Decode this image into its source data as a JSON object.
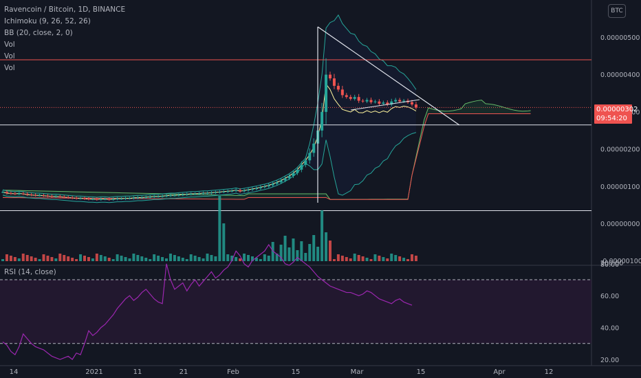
{
  "legend": {
    "title": "Ravencoin / Bitcoin, 1D, BINANCE",
    "indicators": [
      "Ichimoku (9, 26, 52, 26)",
      "BB (20, close, 2, 0)",
      "Vol",
      "Vol",
      "Vol"
    ]
  },
  "currency_button": "BTC",
  "price_tag": {
    "value": "0.00000302",
    "countdown": "09:54:20"
  },
  "rsi_legend": "RSI (14, close)",
  "colors": {
    "background": "#131722",
    "up": "#26a69a",
    "down": "#ef5350",
    "rsi": "#9c27b0",
    "rsi_band": "#2a1a35",
    "kumo": "#1c3a30",
    "horizontal_line": "#e0e3eb",
    "red_line": "#ef5350"
  },
  "chart_data": [
    {
      "type": "candlestick",
      "title": "Ravencoin / Bitcoin, 1D, BINANCE",
      "ylim": [
        -1e-06,
        5.6e-06
      ],
      "y_ticks": [
        "0.00000500",
        "0.00000400",
        "0.00000300",
        "0.00000200",
        "0.00000100",
        "0.00000000",
        "-0.00000100"
      ],
      "x_ticks": [
        "14",
        "2021",
        "11",
        "21",
        "Feb",
        "15",
        "Mar",
        "15",
        "Apr",
        "12"
      ],
      "current_price": 3.02e-06,
      "horizontal_lines": [
        4.3e-06,
        2.55e-06,
        2.5e-07
      ],
      "close_approx": [
        7.5e-07,
        7.2e-07,
        7.1e-07,
        7e-07,
        7.1e-07,
        7e-07,
        6.8e-07,
        6.7e-07,
        6.6e-07,
        6.6e-07,
        6.5e-07,
        6.4e-07,
        6.3e-07,
        6.3e-07,
        6.2e-07,
        6.1e-07,
        6e-07,
        5.9e-07,
        5.8e-07,
        5.8e-07,
        5.7e-07,
        5.6e-07,
        5.6e-07,
        5.5e-07,
        5.6e-07,
        5.6e-07,
        5.5e-07,
        5.6e-07,
        5.7e-07,
        5.7e-07,
        5.8e-07,
        5.8e-07,
        5.9e-07,
        6e-07,
        6e-07,
        6.1e-07,
        6.2e-07,
        6.3e-07,
        6.3e-07,
        6.4e-07,
        6.5e-07,
        6.6e-07,
        6.6e-07,
        6.7e-07,
        6.8e-07,
        6.9e-07,
        7e-07,
        7e-07,
        7.1e-07,
        7.2e-07,
        7.2e-07,
        7.3e-07,
        7.4e-07,
        7.5e-07,
        7.6e-07,
        7.7e-07,
        7.8e-07,
        8e-07,
        7.7e-07,
        7.9e-07,
        8.1e-07,
        8.3e-07,
        8.5e-07,
        8.8e-07,
        9e-07,
        9.3e-07,
        9.7e-07,
        1.01e-06,
        1.06e-06,
        1.12e-06,
        1.18e-06,
        1.26e-06,
        1.35e-06,
        1.48e-06,
        1.6e-06,
        1.8e-06,
        2.05e-06,
        2.4e-06,
        2.9e-06,
        3.9e-06,
        3.8e-06,
        3.6e-06,
        3.5e-06,
        3.35e-06,
        3.3e-06,
        3.25e-06,
        3.3e-06,
        3.2e-06,
        3.18e-06,
        3.22e-06,
        3.16e-06,
        3.18e-06,
        3.12e-06,
        3.15e-06,
        3.1e-06,
        3.18e-06,
        3.22e-06,
        3.18e-06,
        3.2e-06,
        3.16e-06,
        3.1e-06,
        3.02e-06
      ]
    },
    {
      "type": "line",
      "title": "RSI (14, close)",
      "ylim": [
        10,
        95
      ],
      "y_ticks": [
        "80.00",
        "60.00",
        "40.00",
        "20.00"
      ],
      "bands": [
        70,
        30
      ],
      "values": [
        31,
        29,
        25,
        23,
        28,
        36,
        33,
        30,
        28,
        27,
        26,
        24,
        22,
        21,
        20,
        21,
        22,
        20,
        24,
        23,
        30,
        38,
        35,
        37,
        40,
        42,
        45,
        48,
        52,
        55,
        58,
        60,
        57,
        59,
        62,
        64,
        61,
        58,
        56,
        55,
        80,
        70,
        64,
        66,
        68,
        63,
        67,
        70,
        66,
        69,
        72,
        75,
        71,
        73,
        76,
        78,
        82,
        88,
        85,
        80,
        78,
        82,
        84,
        86,
        88,
        92,
        88,
        86,
        84,
        80,
        79,
        81,
        84,
        82,
        80,
        78,
        75,
        72,
        70,
        68,
        66,
        65,
        64,
        63,
        62,
        62,
        61,
        60,
        61,
        63,
        62,
        60,
        58,
        57,
        56,
        55,
        57,
        58,
        56,
        55,
        54
      ]
    }
  ]
}
